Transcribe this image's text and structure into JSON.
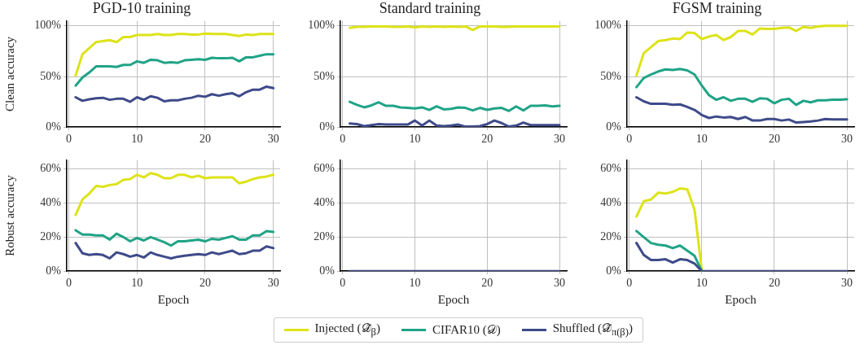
{
  "chart_data": [
    {
      "type": "line",
      "title": "PGD-10 training",
      "ylabel": "Clean accuracy",
      "xlim": [
        -0.3,
        31
      ],
      "xticks": [
        0,
        10,
        20,
        30
      ],
      "ylim": [
        0,
        105
      ],
      "yticks": [
        {
          "value": 0,
          "label": "0%"
        },
        {
          "value": 50,
          "label": "50%"
        },
        {
          "value": 100,
          "label": "100%"
        }
      ],
      "grid": true,
      "marker": "none",
      "line_style": "solid",
      "x": [
        1,
        2,
        3,
        4,
        5,
        6,
        7,
        8,
        9,
        10,
        11,
        12,
        13,
        14,
        15,
        16,
        17,
        18,
        19,
        20,
        21,
        22,
        23,
        24,
        25,
        26,
        27,
        28,
        29,
        30
      ],
      "series": [
        {
          "color": "#dde318",
          "values": [
            51,
            72,
            78,
            84,
            85,
            86,
            84,
            89,
            89,
            91,
            91,
            91,
            92,
            91,
            91,
            92,
            92,
            91.5,
            91.5,
            92.5,
            92,
            92,
            92,
            91,
            90,
            91.5,
            91,
            92,
            92,
            92
          ]
        },
        {
          "color": "#20a386",
          "values": [
            41,
            49,
            54,
            60,
            60,
            60,
            59.5,
            61.5,
            61.5,
            65,
            63.5,
            66.5,
            66,
            63.5,
            64,
            63.5,
            66,
            66.5,
            67,
            66.5,
            68.5,
            68,
            68,
            68.5,
            65,
            69,
            69,
            70.5,
            72,
            72
          ]
        },
        {
          "color": "#3e4a89",
          "values": [
            29.5,
            26,
            27.5,
            28.5,
            29,
            27,
            28,
            28,
            25,
            29.5,
            27,
            30.5,
            29,
            25.5,
            26.5,
            26.5,
            28,
            29,
            31,
            30,
            32.5,
            31,
            32.5,
            33.5,
            30.5,
            34.5,
            37,
            37,
            40,
            38.5
          ]
        }
      ]
    },
    {
      "type": "line",
      "title": "Standard training",
      "xlim": [
        -0.3,
        31
      ],
      "xticks": [
        0,
        10,
        20,
        30
      ],
      "ylim": [
        0,
        105
      ],
      "yticks": [
        {
          "value": 0,
          "label": "0%"
        },
        {
          "value": 50,
          "label": "50%"
        },
        {
          "value": 100,
          "label": "100%"
        }
      ],
      "grid": true,
      "marker": "none",
      "line_style": "solid",
      "x": [
        1,
        2,
        3,
        4,
        5,
        6,
        7,
        8,
        9,
        10,
        11,
        12,
        13,
        14,
        15,
        16,
        17,
        18,
        19,
        20,
        21,
        22,
        23,
        24,
        25,
        26,
        27,
        28,
        29,
        30
      ],
      "series": [
        {
          "color": "#dde318",
          "values": [
            98,
            99,
            99,
            99.5,
            99.5,
            99.5,
            99,
            99,
            99.5,
            98.5,
            99.5,
            99,
            99.5,
            99,
            99.5,
            99,
            99.5,
            96,
            99.5,
            99.5,
            99.5,
            99,
            99,
            99.5,
            99.5,
            99.5,
            99.5,
            99.5,
            99.5,
            99.5
          ]
        },
        {
          "color": "#20a386",
          "values": [
            25,
            22,
            19.5,
            21.5,
            24.5,
            21,
            21,
            19.5,
            19,
            18.5,
            19.5,
            17,
            20.5,
            17.5,
            18,
            19.5,
            19,
            16.5,
            19,
            17,
            18.5,
            19,
            16,
            20.5,
            16.5,
            21,
            21,
            21.5,
            20.5,
            21
          ]
        },
        {
          "color": "#3e4a89",
          "values": [
            3.5,
            3,
            1,
            2,
            3,
            2.5,
            2.5,
            2.5,
            2.5,
            6.5,
            1.5,
            6.5,
            1.5,
            1,
            1.5,
            2.5,
            0.5,
            0.5,
            1,
            3,
            6.5,
            4,
            0.5,
            1.5,
            4.5,
            2,
            2,
            2,
            2,
            2
          ]
        }
      ]
    },
    {
      "type": "line",
      "title": "FGSM training",
      "xlim": [
        -0.3,
        31
      ],
      "xticks": [
        0,
        10,
        20,
        30
      ],
      "ylim": [
        0,
        105
      ],
      "yticks": [
        {
          "value": 0,
          "label": "0%"
        },
        {
          "value": 50,
          "label": "50%"
        },
        {
          "value": 100,
          "label": "100%"
        }
      ],
      "grid": true,
      "marker": "none",
      "line_style": "solid",
      "x": [
        1,
        2,
        3,
        4,
        5,
        6,
        7,
        8,
        9,
        10,
        11,
        12,
        13,
        14,
        15,
        16,
        17,
        18,
        19,
        20,
        21,
        22,
        23,
        24,
        25,
        26,
        27,
        28,
        29,
        30
      ],
      "series": [
        {
          "color": "#dde318",
          "values": [
            51,
            73,
            79,
            85,
            86,
            87.5,
            87,
            93.5,
            93,
            87,
            89.5,
            91,
            86,
            89,
            95,
            95,
            91.5,
            97.5,
            97,
            97,
            98,
            98.5,
            95,
            99,
            98,
            99.5,
            100,
            100,
            100,
            100
          ]
        },
        {
          "color": "#20a386",
          "values": [
            39.5,
            48.5,
            52,
            55,
            57,
            56.5,
            57.5,
            56,
            52,
            41,
            31.5,
            27,
            29.5,
            26,
            28,
            28,
            25,
            28.5,
            28,
            23.5,
            27,
            28,
            22,
            26,
            24.5,
            26.5,
            26.5,
            27,
            27,
            27.5
          ]
        },
        {
          "color": "#3e4a89",
          "values": [
            29.5,
            25.5,
            23,
            23,
            23,
            22,
            22.5,
            20,
            17,
            12,
            9,
            10.5,
            9.5,
            10,
            8,
            10,
            6.5,
            6.5,
            8,
            8,
            6.5,
            7.5,
            4.5,
            5,
            5.5,
            6.5,
            8,
            7.5,
            7.5,
            7.5
          ]
        }
      ]
    },
    {
      "type": "line",
      "ylabel": "Robust accuracy",
      "xlabel": "Epoch",
      "xlim": [
        -0.3,
        31
      ],
      "xticks": [
        0,
        10,
        20,
        30
      ],
      "ylim": [
        0,
        65
      ],
      "yticks": [
        {
          "value": 0,
          "label": "0%"
        },
        {
          "value": 20,
          "label": "20%"
        },
        {
          "value": 40,
          "label": "40%"
        },
        {
          "value": 60,
          "label": "60%"
        }
      ],
      "grid": true,
      "marker": "none",
      "line_style": "solid",
      "x": [
        1,
        2,
        3,
        4,
        5,
        6,
        7,
        8,
        9,
        10,
        11,
        12,
        13,
        14,
        15,
        16,
        17,
        18,
        19,
        20,
        21,
        22,
        23,
        24,
        25,
        26,
        27,
        28,
        29,
        30
      ],
      "series": [
        {
          "color": "#dde318",
          "values": [
            33,
            42,
            45.5,
            50,
            49.5,
            50.5,
            51,
            53.5,
            54,
            56.5,
            55,
            57.5,
            56.5,
            54.5,
            54.5,
            56.5,
            56.5,
            55,
            56,
            54.5,
            55,
            55,
            55,
            55,
            51.5,
            52.5,
            54,
            55,
            55.5,
            56.5
          ]
        },
        {
          "color": "#20a386",
          "values": [
            24,
            21.5,
            21.5,
            21,
            21,
            18.5,
            22,
            20,
            17.5,
            19.5,
            18,
            20,
            18.5,
            17,
            15,
            17.5,
            17.5,
            18,
            18.5,
            17.5,
            19,
            18.5,
            19.5,
            20.5,
            18.5,
            18.5,
            21,
            21,
            23.5,
            23
          ]
        },
        {
          "color": "#3e4a89",
          "values": [
            16.5,
            10.5,
            9.5,
            10,
            9.5,
            7.5,
            11,
            10,
            8.5,
            9.5,
            8,
            11,
            9.5,
            8.5,
            7.5,
            8.5,
            9,
            9.5,
            10,
            9.5,
            11,
            10,
            11,
            12,
            10,
            10.5,
            12,
            12,
            14.5,
            13.5
          ]
        }
      ]
    },
    {
      "type": "line",
      "xlabel": "Epoch",
      "xlim": [
        -0.3,
        31
      ],
      "xticks": [
        0,
        10,
        20,
        30
      ],
      "ylim": [
        0,
        65
      ],
      "yticks": [
        {
          "value": 0,
          "label": "0%"
        },
        {
          "value": 20,
          "label": "20%"
        },
        {
          "value": 40,
          "label": "40%"
        },
        {
          "value": 60,
          "label": "60%"
        }
      ],
      "grid": true,
      "marker": "none",
      "line_style": "solid",
      "legend": "bottom",
      "x": [
        1,
        2,
        3,
        4,
        5,
        6,
        7,
        8,
        9,
        10,
        11,
        12,
        13,
        14,
        15,
        16,
        17,
        18,
        19,
        20,
        21,
        22,
        23,
        24,
        25,
        26,
        27,
        28,
        29,
        30
      ],
      "series": [
        {
          "name": "Injected (𝒟̃$_{β}$)",
          "color": "#dde318",
          "values": [
            null,
            null,
            null,
            null,
            null,
            null,
            null,
            null,
            null,
            null,
            null,
            null,
            null,
            null,
            null,
            null,
            null,
            null,
            null,
            null,
            null,
            null,
            null,
            null,
            null,
            null,
            null,
            null,
            null,
            null
          ]
        },
        {
          "name": "CIFAR10 (𝒟)",
          "color": "#20a386",
          "values": [
            null,
            null,
            null,
            null,
            null,
            null,
            null,
            null,
            null,
            null,
            null,
            null,
            null,
            null,
            null,
            null,
            null,
            null,
            null,
            null,
            null,
            null,
            null,
            null,
            null,
            null,
            null,
            null,
            null,
            null
          ]
        },
        {
          "name": "Shuffled (𝒟̃$_{π(β)}$)",
          "color": "#3e4a89",
          "values": [
            0,
            0,
            0,
            0,
            0,
            0,
            0,
            0,
            0,
            0,
            0,
            0,
            0,
            0,
            0,
            0,
            0,
            0,
            0,
            0,
            0,
            0,
            0,
            0,
            0,
            0,
            0,
            0,
            0,
            0
          ]
        }
      ]
    },
    {
      "type": "line",
      "xlabel": "Epoch",
      "xlim": [
        -0.3,
        31
      ],
      "xticks": [
        0,
        10,
        20,
        30
      ],
      "ylim": [
        0,
        65
      ],
      "yticks": [
        {
          "value": 0,
          "label": "0%"
        },
        {
          "value": 20,
          "label": "20%"
        },
        {
          "value": 40,
          "label": "40%"
        },
        {
          "value": 60,
          "label": "60%"
        }
      ],
      "grid": true,
      "marker": "none",
      "line_style": "solid",
      "x": [
        1,
        2,
        3,
        4,
        5,
        6,
        7,
        8,
        9,
        10,
        11,
        12,
        13,
        14,
        15,
        16,
        17,
        18,
        19,
        20,
        21,
        22,
        23,
        24,
        25,
        26,
        27,
        28,
        29,
        30
      ],
      "series": [
        {
          "color": "#dde318",
          "values": [
            32,
            41,
            42,
            46,
            45.5,
            46.5,
            48.5,
            48,
            36,
            0.5,
            null,
            null,
            null,
            null,
            null,
            null,
            null,
            null,
            null,
            null,
            null,
            null,
            null,
            null,
            null,
            null,
            null,
            null,
            null,
            null
          ]
        },
        {
          "color": "#20a386",
          "values": [
            23.5,
            20,
            16.5,
            15.5,
            15,
            13.5,
            15,
            12,
            9,
            0,
            null,
            null,
            null,
            null,
            null,
            null,
            null,
            null,
            null,
            null,
            null,
            null,
            null,
            null,
            null,
            null,
            null,
            null,
            null,
            null
          ]
        },
        {
          "color": "#3e4a89",
          "values": [
            16.5,
            9.5,
            6.5,
            6.5,
            7,
            5,
            7,
            6.5,
            4.5,
            0,
            0,
            0,
            0,
            0,
            0,
            0,
            0,
            0,
            0,
            0,
            0,
            0,
            0,
            0,
            0,
            0,
            0,
            0,
            0,
            0
          ]
        }
      ]
    }
  ]
}
